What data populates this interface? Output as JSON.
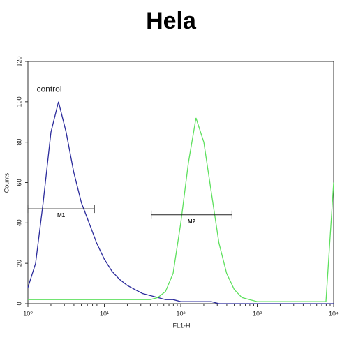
{
  "chart_data": {
    "type": "line",
    "title": "Hela",
    "xlabel": "FL1-H",
    "ylabel": "Counts",
    "xscale": "log",
    "x": [
      1,
      1.26,
      1.58,
      2,
      2.51,
      3.16,
      3.98,
      5.01,
      6.31,
      7.94,
      10,
      12.6,
      15.8,
      20,
      25.1,
      31.6,
      39.8,
      50.1,
      63.1,
      79.4,
      100,
      126,
      158,
      200,
      251,
      316,
      398,
      501,
      631,
      794,
      1000,
      1260,
      1580,
      2000,
      2510,
      3160,
      3980,
      5010,
      6310,
      7940,
      10000
    ],
    "series": [
      {
        "color": "#2b2b9c",
        "values": [
          8,
          20,
          50,
          85,
          100,
          85,
          65,
          50,
          40,
          30,
          22,
          16,
          12,
          9,
          7,
          5,
          4,
          3,
          2,
          2,
          1,
          1,
          1,
          1,
          1,
          0,
          0,
          0,
          0,
          0,
          0,
          0,
          0,
          0,
          0,
          0,
          0,
          0,
          0,
          0,
          0
        ]
      },
      {
        "color": "#5ee05e",
        "values": [
          2,
          2,
          2,
          2,
          2,
          2,
          2,
          2,
          2,
          2,
          2,
          2,
          2,
          2,
          2,
          2,
          2,
          3,
          6,
          15,
          40,
          70,
          92,
          80,
          55,
          30,
          15,
          7,
          3,
          2,
          1,
          1,
          1,
          1,
          1,
          1,
          1,
          1,
          1,
          1,
          60
        ]
      }
    ],
    "annotations": [
      {
        "text": "control",
        "x": 1.3,
        "y": 106
      }
    ],
    "markers": [
      {
        "label": "M1",
        "x": [
          1,
          7.4
        ],
        "y": 47
      },
      {
        "label": "M2",
        "x": [
          41,
          468
        ],
        "y": 44
      }
    ],
    "xlim": [
      1,
      10000
    ],
    "ylim": [
      0,
      120
    ],
    "xticks": [
      {
        "value": 1,
        "label": "10⁰"
      },
      {
        "value": 10,
        "label": "10¹"
      },
      {
        "value": 100,
        "label": "10²"
      },
      {
        "value": 1000,
        "label": "10³"
      },
      {
        "value": 10000,
        "label": "10⁴"
      }
    ],
    "yticks": [
      0,
      20,
      40,
      60,
      80,
      100,
      120
    ]
  }
}
